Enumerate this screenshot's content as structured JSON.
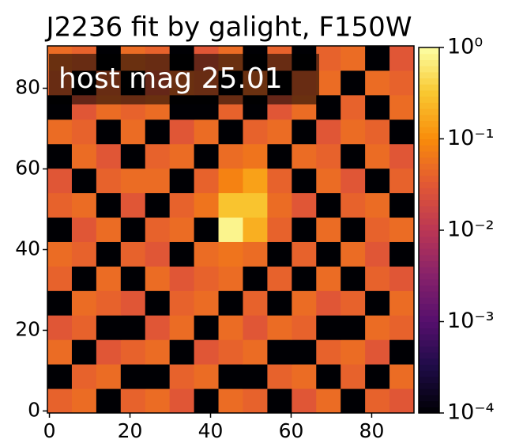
{
  "chart_data": {
    "type": "image",
    "title": "J2236 fit by galight, F150W",
    "annotation": "host mag 25.01",
    "colormap": "inferno",
    "log": true,
    "zlim": [
      0.0001,
      1
    ],
    "zticks": [
      {
        "value": 1,
        "label": "10⁰"
      },
      {
        "value": 0.1,
        "label": "10⁻¹"
      },
      {
        "value": 0.01,
        "label": "10⁻²"
      },
      {
        "value": 0.001,
        "label": "10⁻³"
      },
      {
        "value": 0.0001,
        "label": "10⁻⁴"
      }
    ],
    "xlim": [
      -0.5,
      90.5
    ],
    "ylim": [
      -0.5,
      90.5
    ],
    "xticks": [
      0,
      20,
      40,
      60,
      80
    ],
    "yticks": [
      0,
      20,
      40,
      60,
      80
    ],
    "z": [
      [
        0.04,
        0.05,
        0.0001,
        0.04,
        0.05,
        0.03,
        0.0001,
        0.05,
        0.04,
        0.0001,
        0.03,
        0.05,
        0.0001,
        0.04,
        0.03
      ],
      [
        0.0001,
        0.04,
        0.05,
        0.0001,
        0.0001,
        0.04,
        0.05,
        0.0001,
        0.0001,
        0.04,
        0.05,
        0.0001,
        0.04,
        0.0001,
        0.05
      ],
      [
        0.05,
        0.0001,
        0.03,
        0.04,
        0.05,
        0.0001,
        0.03,
        0.04,
        0.05,
        0.0001,
        0.0001,
        0.04,
        0.05,
        0.03,
        0.0001
      ],
      [
        0.03,
        0.04,
        0.0001,
        0.0001,
        0.03,
        0.05,
        0.0001,
        0.05,
        0.03,
        0.05,
        0.04,
        0.0001,
        0.0001,
        0.05,
        0.04
      ],
      [
        0.0001,
        0.05,
        0.04,
        0.03,
        0.0001,
        0.04,
        0.05,
        0.0001,
        0.04,
        0.0001,
        0.05,
        0.03,
        0.04,
        0.0001,
        0.05
      ],
      [
        0.04,
        0.0001,
        0.05,
        0.0001,
        0.05,
        0.03,
        0.04,
        0.05,
        0.0001,
        0.04,
        0.0001,
        0.05,
        0.0001,
        0.04,
        0.03
      ],
      [
        0.05,
        0.04,
        0.0001,
        0.04,
        0.03,
        0.0001,
        0.05,
        0.06,
        0.05,
        0.0001,
        0.04,
        0.0001,
        0.05,
        0.03,
        0.0001
      ],
      [
        0.0001,
        0.03,
        0.05,
        0.0001,
        0.04,
        0.05,
        0.0001,
        0.8,
        0.2,
        0.04,
        0.0001,
        0.05,
        0.0001,
        0.04,
        0.05
      ],
      [
        0.04,
        0.05,
        0.0001,
        0.03,
        0.0001,
        0.04,
        0.06,
        0.3,
        0.3,
        0.05,
        0.03,
        0.0001,
        0.04,
        0.05,
        0.0001
      ],
      [
        0.03,
        0.0001,
        0.04,
        0.05,
        0.05,
        0.0001,
        0.04,
        0.08,
        0.15,
        0.04,
        0.0001,
        0.05,
        0.03,
        0.0001,
        0.04
      ],
      [
        0.0001,
        0.05,
        0.03,
        0.0001,
        0.04,
        0.05,
        0.0001,
        0.05,
        0.06,
        0.0001,
        0.05,
        0.04,
        0.0001,
        0.05,
        0.03
      ],
      [
        0.05,
        0.04,
        0.0001,
        0.05,
        0.0001,
        0.03,
        0.05,
        0.0001,
        0.04,
        0.05,
        0.0001,
        0.03,
        0.05,
        0.04,
        0.0001
      ],
      [
        0.0001,
        0.03,
        0.05,
        0.04,
        0.05,
        0.0001,
        0.0001,
        0.04,
        0.0001,
        0.03,
        0.05,
        0.0001,
        0.04,
        0.0001,
        0.05
      ],
      [
        0.04,
        0.0001,
        0.04,
        0.0001,
        0.03,
        0.05,
        0.04,
        0.0001,
        0.05,
        0.0001,
        0.04,
        0.05,
        0.0001,
        0.05,
        0.04
      ],
      [
        0.05,
        0.04,
        0.0001,
        0.05,
        0.04,
        0.0001,
        0.03,
        0.05,
        0.0001,
        0.04,
        0.0001,
        0.04,
        0.05,
        0.0001,
        0.03
      ]
    ]
  }
}
